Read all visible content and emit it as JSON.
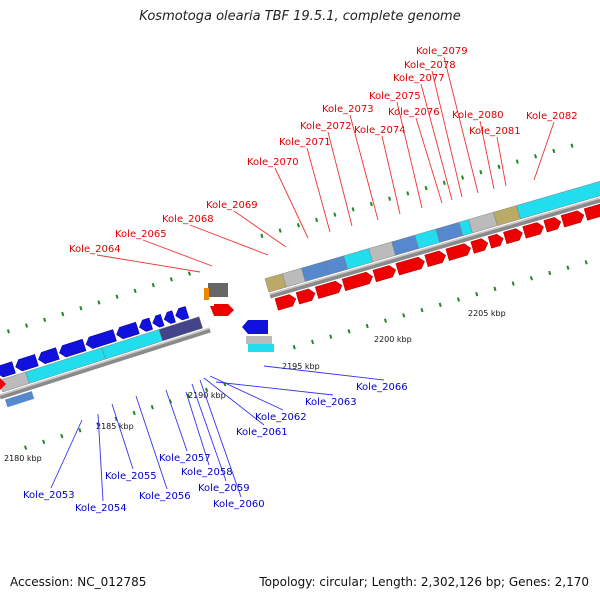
{
  "title": "Kosmotoga olearia TBF 19.5.1, complete genome",
  "accession": "Accession: NC_012785",
  "summary": "Topology: circular; Length: 2,302,126 bp; Genes: 2,170",
  "colors": {
    "forward_gene": "#ee0000",
    "reverse_gene": "#1111dd",
    "forward_label": "#dd0000",
    "reverse_label": "#0000cc",
    "backbone": "#8a8a8a",
    "tick_mark": "#228822",
    "track_cyan": "#22ddee",
    "track_steelblue": "#5588cc",
    "track_khaki": "#bbaa66",
    "track_gray": "#bbbbbb",
    "track_indigo": "#44448a"
  },
  "scale_ticks": [
    "2180 kbp",
    "2185 kbp",
    "2190 kbp",
    "2195 kbp",
    "2200 kbp",
    "2205 kbp"
  ],
  "forward_labels": [
    "Kole_2064",
    "Kole_2065",
    "Kole_2068",
    "Kole_2069",
    "Kole_2070",
    "Kole_2071",
    "Kole_2072",
    "Kole_2073",
    "Kole_2074",
    "Kole_2075",
    "Kole_2076",
    "Kole_2077",
    "Kole_2078",
    "Kole_2079",
    "Kole_2080",
    "Kole_2081",
    "Kole_2082"
  ],
  "reverse_labels": [
    "Kole_2053",
    "Kole_2054",
    "Kole_2055",
    "Kole_2056",
    "Kole_2057",
    "Kole_2058",
    "Kole_2059",
    "Kole_2060",
    "Kole_2061",
    "Kole_2062",
    "Kole_2063",
    "Kole_2066"
  ]
}
